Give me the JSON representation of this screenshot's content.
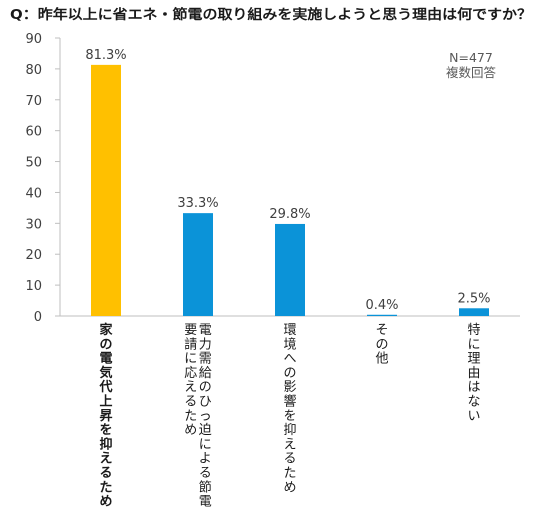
{
  "chart_data": {
    "type": "bar",
    "title": "Q：昨年以上に省エネ・節電の取り組みを実施しようと思う理由は何ですか？",
    "note_lines": [
      "N=477",
      "複数回答"
    ],
    "categories": [
      "家の電気代上昇を抑えるため",
      "電力需給のひっ迫による節電要請に応えるため",
      "環境への影響を抑えるため",
      "その他",
      "特に理由はない"
    ],
    "values": [
      81.3,
      33.3,
      29.8,
      0.4,
      2.5
    ],
    "value_labels": [
      "81.3%",
      "33.3%",
      "29.8%",
      "0.4%",
      "2.5%"
    ],
    "ylim": [
      0,
      90
    ],
    "yticks": [
      "0",
      "10",
      "20",
      "30",
      "40",
      "50",
      "60",
      "70",
      "80",
      "90"
    ],
    "grid": false,
    "colors": {
      "highlight": "#ffc000",
      "default": "#0b93d8",
      "axis": "#bfbfbf"
    },
    "highlight_index": 0,
    "bold_category_index": 0
  }
}
